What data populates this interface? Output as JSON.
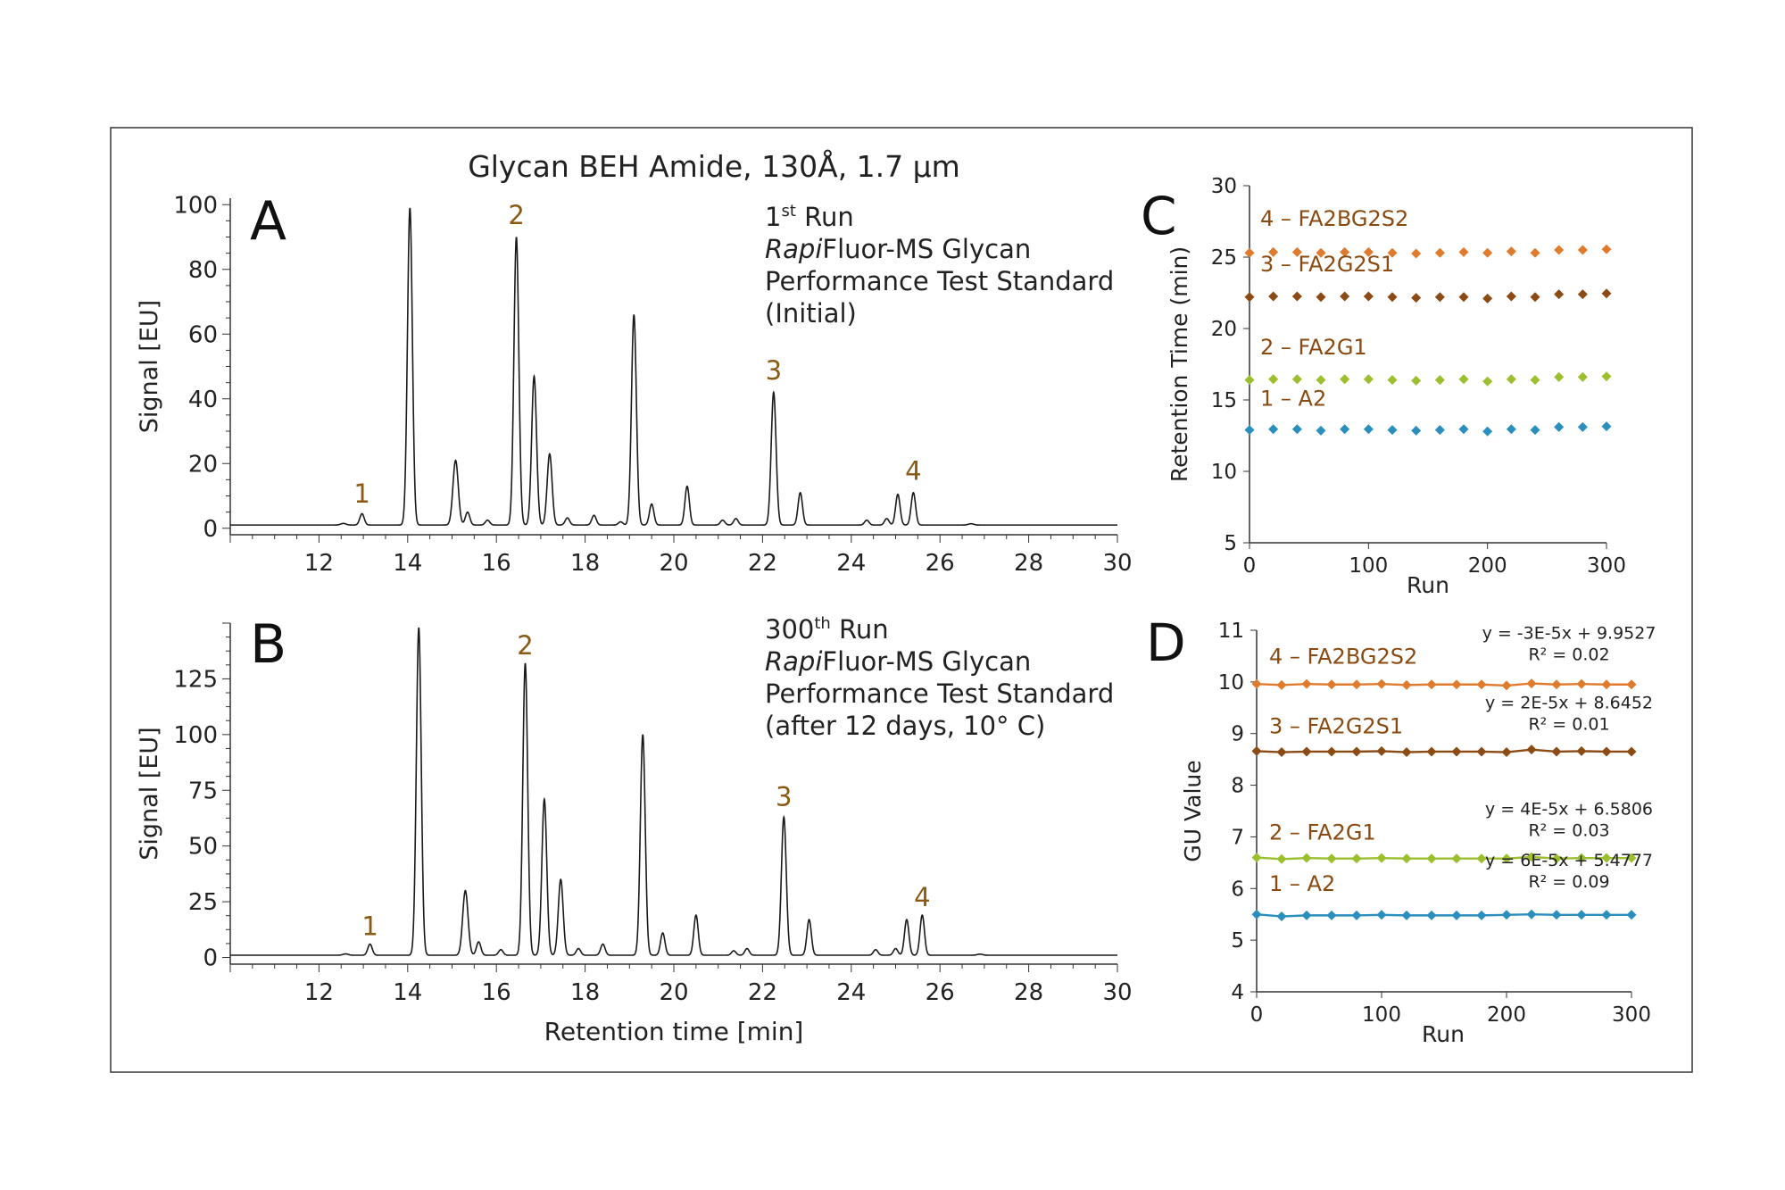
{
  "figure": {
    "title": "Glycan BEH Amide, 130Å, 1.7 µm",
    "colors": {
      "trace": "#1a1a1a",
      "peak_label": "#8a5a14",
      "series_label": "#8a4a10",
      "orange": "#e07b2e",
      "brown": "#8c4a14",
      "lime": "#9cbf2e",
      "blue": "#2a8fbf",
      "frame": "#333333"
    }
  },
  "chart_data": [
    {
      "id": "A",
      "panel_letter": "A",
      "type": "line",
      "annotation": {
        "line1_main": "1",
        "line1_sup": "st",
        "line1_rest": " Run",
        "line2_italic": "Rapi",
        "line2_rest": "Fluor-MS Glycan",
        "line3": "Performance Test Standard",
        "line4": "(Initial)"
      },
      "xlabel": "",
      "ylabel": "Signal [EU]",
      "xlim": [
        10,
        30
      ],
      "ylim": [
        -2,
        102
      ],
      "xticks": [
        12,
        14,
        16,
        18,
        20,
        22,
        24,
        26,
        28,
        30
      ],
      "yticks": [
        0,
        20,
        40,
        60,
        80,
        100
      ],
      "baseline": 1,
      "peaks": [
        {
          "x": 12.55,
          "h": 0.5,
          "w": 0.06
        },
        {
          "x": 12.97,
          "h": 3.5,
          "w": 0.05
        },
        {
          "x": 14.05,
          "h": 98,
          "w": 0.055
        },
        {
          "x": 15.08,
          "h": 20,
          "w": 0.06
        },
        {
          "x": 15.35,
          "h": 4,
          "w": 0.05
        },
        {
          "x": 15.8,
          "h": 1.5,
          "w": 0.05
        },
        {
          "x": 16.45,
          "h": 89,
          "w": 0.055
        },
        {
          "x": 16.85,
          "h": 46,
          "w": 0.055
        },
        {
          "x": 17.2,
          "h": 22,
          "w": 0.055
        },
        {
          "x": 17.6,
          "h": 2.2,
          "w": 0.05
        },
        {
          "x": 18.2,
          "h": 3,
          "w": 0.05
        },
        {
          "x": 18.8,
          "h": 1,
          "w": 0.05
        },
        {
          "x": 19.1,
          "h": 65,
          "w": 0.055
        },
        {
          "x": 19.5,
          "h": 6.5,
          "w": 0.05
        },
        {
          "x": 20.3,
          "h": 12,
          "w": 0.05
        },
        {
          "x": 21.1,
          "h": 1.5,
          "w": 0.05
        },
        {
          "x": 21.4,
          "h": 2,
          "w": 0.05
        },
        {
          "x": 22.25,
          "h": 41,
          "w": 0.055
        },
        {
          "x": 22.85,
          "h": 10,
          "w": 0.05
        },
        {
          "x": 24.35,
          "h": 1.5,
          "w": 0.05
        },
        {
          "x": 24.8,
          "h": 2,
          "w": 0.05
        },
        {
          "x": 25.05,
          "h": 9.5,
          "w": 0.05
        },
        {
          "x": 25.4,
          "h": 10,
          "w": 0.05
        },
        {
          "x": 26.7,
          "h": 0.4,
          "w": 0.06
        }
      ],
      "peak_labels": [
        {
          "text": "1",
          "x": 12.97,
          "y": 8
        },
        {
          "text": "2",
          "x": 16.45,
          "y": 94
        },
        {
          "text": "3",
          "x": 22.25,
          "y": 46
        },
        {
          "text": "4",
          "x": 25.4,
          "y": 15
        }
      ]
    },
    {
      "id": "B",
      "panel_letter": "B",
      "type": "line",
      "annotation": {
        "line1_main": "300",
        "line1_sup": "th",
        "line1_rest": " Run",
        "line2_italic": "Rapi",
        "line2_rest": "Fluor-MS Glycan",
        "line3": "Performance Test Standard",
        "line4": "(after 12 days, 10° C)"
      },
      "xlabel": "Retention time [min]",
      "ylabel": "Signal [EU]",
      "xlim": [
        10,
        30
      ],
      "ylim": [
        -3,
        150
      ],
      "xticks": [
        12,
        14,
        16,
        18,
        20,
        22,
        24,
        26,
        28,
        30
      ],
      "yticks": [
        0,
        25,
        50,
        75,
        100,
        125
      ],
      "baseline": 1,
      "peaks": [
        {
          "x": 12.6,
          "h": 0.6,
          "w": 0.06
        },
        {
          "x": 13.15,
          "h": 5,
          "w": 0.05
        },
        {
          "x": 14.25,
          "h": 147,
          "w": 0.055
        },
        {
          "x": 15.3,
          "h": 29,
          "w": 0.06
        },
        {
          "x": 15.6,
          "h": 6,
          "w": 0.05
        },
        {
          "x": 16.1,
          "h": 2.5,
          "w": 0.05
        },
        {
          "x": 16.65,
          "h": 131,
          "w": 0.055
        },
        {
          "x": 17.08,
          "h": 70,
          "w": 0.055
        },
        {
          "x": 17.45,
          "h": 34,
          "w": 0.055
        },
        {
          "x": 17.85,
          "h": 3,
          "w": 0.05
        },
        {
          "x": 18.4,
          "h": 5,
          "w": 0.05
        },
        {
          "x": 19.3,
          "h": 99,
          "w": 0.055
        },
        {
          "x": 19.75,
          "h": 10,
          "w": 0.05
        },
        {
          "x": 20.5,
          "h": 18,
          "w": 0.05
        },
        {
          "x": 21.35,
          "h": 2,
          "w": 0.05
        },
        {
          "x": 21.65,
          "h": 3,
          "w": 0.05
        },
        {
          "x": 22.48,
          "h": 62,
          "w": 0.055
        },
        {
          "x": 23.05,
          "h": 16,
          "w": 0.05
        },
        {
          "x": 24.55,
          "h": 2.5,
          "w": 0.05
        },
        {
          "x": 25.0,
          "h": 3,
          "w": 0.05
        },
        {
          "x": 25.25,
          "h": 16,
          "w": 0.05
        },
        {
          "x": 25.6,
          "h": 18,
          "w": 0.05
        },
        {
          "x": 26.9,
          "h": 0.5,
          "w": 0.06
        }
      ],
      "peak_labels": [
        {
          "text": "1",
          "x": 13.15,
          "y": 10
        },
        {
          "text": "2",
          "x": 16.65,
          "y": 136
        },
        {
          "text": "3",
          "x": 22.48,
          "y": 68
        },
        {
          "text": "4",
          "x": 25.6,
          "y": 23
        }
      ]
    },
    {
      "id": "C",
      "panel_letter": "C",
      "type": "scatter",
      "xlabel": "Run",
      "ylabel": "Retention Time (min)",
      "xlim": [
        0,
        300
      ],
      "ylim": [
        5,
        30
      ],
      "xticks": [
        0,
        100,
        200,
        300
      ],
      "yticks": [
        5,
        10,
        15,
        20,
        25,
        30
      ],
      "x": [
        0,
        20,
        40,
        60,
        80,
        100,
        120,
        140,
        160,
        180,
        200,
        220,
        240,
        260,
        280,
        300
      ],
      "series": [
        {
          "name": "4 – FA2BG2S2",
          "color": "#e07b2e",
          "label_y": 27.2,
          "values": [
            25.3,
            25.35,
            25.35,
            25.3,
            25.35,
            25.35,
            25.3,
            25.25,
            25.3,
            25.35,
            25.3,
            25.4,
            25.3,
            25.5,
            25.5,
            25.55
          ]
        },
        {
          "name": "3 – FA2G2S1",
          "color": "#8c4a14",
          "label_y": 24.0,
          "values": [
            22.2,
            22.25,
            22.25,
            22.2,
            22.25,
            22.25,
            22.2,
            22.15,
            22.2,
            22.2,
            22.1,
            22.25,
            22.2,
            22.4,
            22.4,
            22.45
          ]
        },
        {
          "name": "2 – FA2G1",
          "color": "#9cbf2e",
          "label_y": 18.2,
          "values": [
            16.4,
            16.45,
            16.45,
            16.4,
            16.45,
            16.45,
            16.4,
            16.35,
            16.4,
            16.45,
            16.3,
            16.45,
            16.4,
            16.6,
            16.6,
            16.65
          ]
        },
        {
          "name": "1 – A2",
          "color": "#2a8fbf",
          "label_y": 14.6,
          "values": [
            12.9,
            12.95,
            12.95,
            12.85,
            12.95,
            12.95,
            12.9,
            12.85,
            12.9,
            12.95,
            12.8,
            12.95,
            12.9,
            13.1,
            13.1,
            13.15
          ]
        }
      ]
    },
    {
      "id": "D",
      "panel_letter": "D",
      "type": "line",
      "xlabel": "Run",
      "ylabel": "GU Value",
      "xlim": [
        0,
        300
      ],
      "ylim": [
        4,
        11
      ],
      "xticks": [
        0,
        100,
        200,
        300
      ],
      "yticks": [
        4,
        5,
        6,
        7,
        8,
        9,
        10,
        11
      ],
      "x": [
        0,
        20,
        40,
        60,
        80,
        100,
        120,
        140,
        160,
        180,
        200,
        220,
        240,
        260,
        280,
        300
      ],
      "series": [
        {
          "name": "4 – FA2BG2S2",
          "color": "#e07b2e",
          "label_y": 10.35,
          "equation": "y = -3E-5x + 9.9527",
          "r2": "R² = 0.02",
          "values": [
            9.96,
            9.94,
            9.96,
            9.95,
            9.95,
            9.96,
            9.94,
            9.95,
            9.95,
            9.95,
            9.93,
            9.97,
            9.95,
            9.96,
            9.95,
            9.95
          ]
        },
        {
          "name": "3 – FA2G2S1",
          "color": "#8c4a14",
          "label_y": 9.0,
          "equation": "y = 2E-5x + 8.6452",
          "r2": "R² = 0.01",
          "values": [
            8.66,
            8.64,
            8.65,
            8.65,
            8.65,
            8.66,
            8.64,
            8.65,
            8.65,
            8.65,
            8.64,
            8.69,
            8.65,
            8.66,
            8.65,
            8.65
          ]
        },
        {
          "name": "2 – FA2G1",
          "color": "#9cbf2e",
          "label_y": 6.95,
          "equation": "y = 4E-5x + 6.5806",
          "r2": "R² = 0.03",
          "values": [
            6.6,
            6.57,
            6.59,
            6.58,
            6.58,
            6.59,
            6.58,
            6.58,
            6.58,
            6.58,
            6.58,
            6.61,
            6.58,
            6.59,
            6.59,
            6.59
          ]
        },
        {
          "name": "1 – A2",
          "color": "#2a8fbf",
          "label_y": 5.95,
          "equation": "y = 6E-5x + 5.4777",
          "r2": "R² = 0.09",
          "values": [
            5.5,
            5.46,
            5.48,
            5.48,
            5.48,
            5.49,
            5.48,
            5.48,
            5.48,
            5.48,
            5.49,
            5.5,
            5.49,
            5.49,
            5.49,
            5.49
          ]
        }
      ]
    }
  ]
}
